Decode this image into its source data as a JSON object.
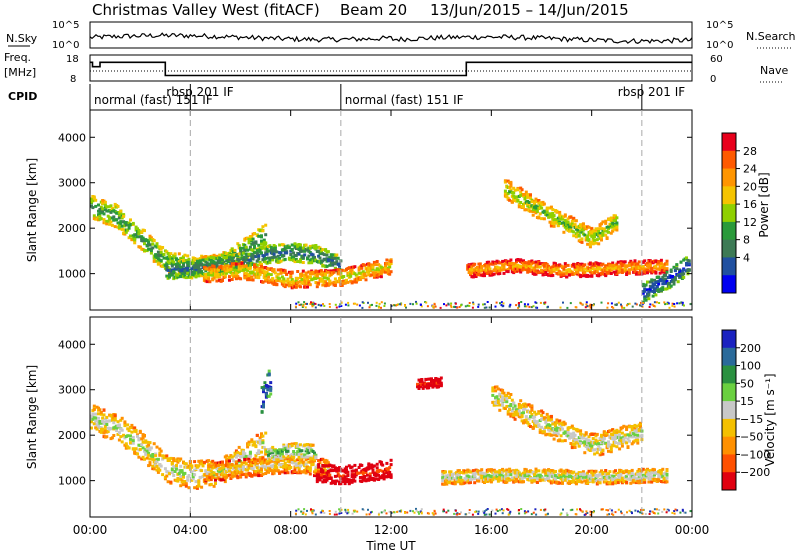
{
  "header": {
    "title_left": "Christmas Valley West (fitACF)",
    "title_beam": "Beam 20",
    "title_dates": "13/Jun/2015 – 14/Jun/2015"
  },
  "noise_panel": {
    "left_label": "N.Sky",
    "right_label": "N.Search",
    "left_ticks": [
      "10^5",
      "10^0"
    ],
    "right_ticks": [
      "10^5",
      "10^0"
    ]
  },
  "freq_panel": {
    "left_label_1": "Freq.",
    "left_label_2": "[MHz]",
    "left_ticks": [
      "18",
      "8"
    ],
    "right_label": "Nave",
    "right_ticks": [
      "60",
      "0"
    ],
    "freq_steps": [
      [
        0.0,
        0.1,
        15.2
      ],
      [
        0.1,
        0.4,
        13.5
      ],
      [
        0.4,
        3.0,
        15.2
      ],
      [
        3.0,
        15.0,
        10.1
      ],
      [
        15.0,
        24.0,
        15.2
      ]
    ]
  },
  "cpid": {
    "label": "CPID",
    "segments": [
      {
        "start_hr": 0.0,
        "text": "normal (fast) 151 IF"
      },
      {
        "start_hr": 4.0,
        "text": "rbsp 201 IF"
      },
      {
        "start_hr": 10.0,
        "text": "normal (fast) 151 IF"
      },
      {
        "start_hr": 22.0,
        "text": "rbsp 201 IF"
      }
    ]
  },
  "power_panel": {
    "colorbar_label": "Power [dB]",
    "colorbar_ticks": [
      "28",
      "24",
      "20",
      "16",
      "12",
      "8",
      "4"
    ],
    "colorbar_colors": [
      "#e8001c",
      "#ff5a00",
      "#ff9500",
      "#f5c400",
      "#8fd000",
      "#2a9a3a",
      "#3d7a55",
      "#2050a0",
      "#0000f0"
    ]
  },
  "velocity_panel": {
    "colorbar_label": "Velocity [m s⁻¹]",
    "colorbar_ticks": [
      "200",
      "100",
      "50",
      "15",
      "−15",
      "−50",
      "−100",
      "−200"
    ],
    "colorbar_colors": [
      "#1a22c0",
      "#2a6a9a",
      "#2a9040",
      "#6ad040",
      "#c8c8c8",
      "#f4c000",
      "#ff9000",
      "#ff5000",
      "#e00010"
    ]
  },
  "chart_data": {
    "type": "heatmap",
    "x_label": "Time UT",
    "x_ticks": [
      "00:00",
      "04:00",
      "08:00",
      "12:00",
      "16:00",
      "20:00",
      "00:00"
    ],
    "x_range_hours": [
      0,
      24
    ],
    "y_label": "Slant Range [km]",
    "y_ticks": [
      1000,
      2000,
      3000,
      4000
    ],
    "y_range_km": [
      200,
      4600
    ],
    "grid": false,
    "dashed_time_markers_hr": [
      4.0,
      10.0,
      22.0
    ],
    "power_bands": [
      {
        "t": [
          0.0,
          1.0,
          2.0,
          3.0,
          4.0,
          5.0,
          6.0,
          7.0
        ],
        "r": [
          2500,
          2300,
          1800,
          1300,
          1150,
          1200,
          1500,
          1900
        ],
        "w": 250,
        "level": 3
      },
      {
        "t": [
          3.0,
          4.0,
          5.0,
          6.0,
          7.0,
          8.0,
          9.0,
          10.0
        ],
        "r": [
          1100,
          1150,
          1200,
          1300,
          1450,
          1500,
          1450,
          1200
        ],
        "w": 200,
        "level": 2
      },
      {
        "t": [
          4.5,
          6.0,
          8.0,
          10.0,
          12.0
        ],
        "r": [
          1000,
          1100,
          900,
          950,
          1200
        ],
        "w": 180,
        "level": 5
      },
      {
        "t": [
          16.5,
          18.0,
          19.0,
          20.0,
          21.0
        ],
        "r": [
          2900,
          2400,
          2100,
          1800,
          2200
        ],
        "w": 220,
        "level": 4
      },
      {
        "t": [
          15.0,
          17.0,
          19.0,
          21.0,
          23.0
        ],
        "r": [
          1100,
          1200,
          1100,
          1150,
          1200
        ],
        "w": 150,
        "level": 6
      },
      {
        "t": [
          22.0,
          23.0,
          24.0
        ],
        "r": [
          600,
          900,
          1300
        ],
        "w": 200,
        "level": 1
      }
    ],
    "velocity_bands": [
      {
        "t": [
          0.0,
          1.0,
          2.0,
          3.0,
          4.0,
          5.0,
          6.0,
          7.0
        ],
        "r": [
          2400,
          2200,
          1800,
          1300,
          1150,
          1200,
          1500,
          1900
        ],
        "w": 300,
        "level": 4
      },
      {
        "t": [
          4.5,
          6.0,
          8.0,
          9.5
        ],
        "r": [
          1200,
          1300,
          1400,
          1300
        ],
        "w": 200,
        "level": 5
      },
      {
        "t": [
          9.0,
          10.0,
          11.0,
          12.0
        ],
        "r": [
          1200,
          1150,
          1200,
          1300
        ],
        "w": 200,
        "level": 8
      },
      {
        "t": [
          7.0,
          8.0,
          9.0
        ],
        "r": [
          1600,
          1700,
          1650
        ],
        "w": 160,
        "level": 3
      },
      {
        "t": [
          16.0,
          18.0,
          20.0,
          22.0
        ],
        "r": [
          2900,
          2300,
          1800,
          2100
        ],
        "w": 250,
        "level": 4
      },
      {
        "t": [
          14.0,
          17.0,
          20.0,
          23.0
        ],
        "r": [
          1100,
          1150,
          1100,
          1150
        ],
        "w": 150,
        "level": 4
      },
      {
        "t": [
          13.0,
          14.0
        ],
        "r": [
          3150,
          3200
        ],
        "w": 100,
        "level": 8
      },
      {
        "t": [
          6.8,
          7.2
        ],
        "r": [
          2800,
          3300
        ],
        "w": 300,
        "level": 0
      }
    ]
  }
}
